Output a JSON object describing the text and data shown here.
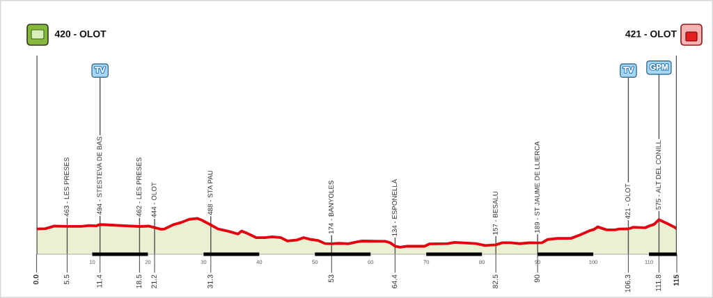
{
  "chart_data": {
    "type": "area",
    "x": [
      0,
      1.6,
      3.2,
      5.5,
      8,
      9.5,
      10.7,
      11.4,
      13.4,
      15.5,
      18.5,
      20.1,
      21.2,
      22.4,
      23,
      24.7,
      25.9,
      27.4,
      28.9,
      29.7,
      31.3,
      32.6,
      34.3,
      36.2,
      36.8,
      37.8,
      39.5,
      41,
      42.4,
      43.9,
      45.1,
      46.8,
      48,
      49.3,
      50.5,
      51.8,
      53,
      54.3,
      56,
      57.6,
      58.5,
      62.6,
      63.5,
      64.4,
      65.3,
      66.4,
      69.7,
      70.6,
      73.9,
      75.1,
      78.9,
      80.6,
      82.5,
      83.7,
      85.1,
      86.8,
      88.5,
      90,
      90.8,
      91.8,
      93.5,
      96,
      97.6,
      99.3,
      100.1,
      100.8,
      102.4,
      103.9,
      104.7,
      106.3,
      107.2,
      109.3,
      110.1,
      110.9,
      111.8,
      113.4,
      114.7,
      115
    ],
    "values": [
      420,
      425,
      468,
      463,
      463,
      478,
      472,
      494,
      485,
      474,
      462,
      468,
      444,
      415,
      420,
      495,
      525,
      580,
      595,
      565,
      488,
      420,
      385,
      337,
      385,
      350,
      275,
      275,
      290,
      275,
      220,
      237,
      275,
      245,
      230,
      178,
      174,
      181,
      174,
      207,
      219,
      215,
      192,
      134,
      117,
      132,
      132,
      172,
      177,
      198,
      177,
      145,
      157,
      192,
      192,
      176,
      190,
      189,
      192,
      245,
      262,
      264,
      320,
      390,
      410,
      455,
      405,
      405,
      420,
      421,
      448,
      440,
      472,
      495,
      575,
      505,
      445,
      421
    ],
    "value_labels": [
      null,
      null,
      null,
      "463 - LES PRESES",
      null,
      null,
      null,
      "494 - STESTEVA DE BAS",
      null,
      null,
      "462 - LES PRESES",
      null,
      "444 - OLOT",
      null,
      null,
      null,
      null,
      null,
      null,
      null,
      "488 - STA PAU",
      null,
      null,
      null,
      null,
      null,
      null,
      null,
      null,
      null,
      null,
      null,
      null,
      null,
      null,
      null,
      "174 - BANYOLES",
      null,
      null,
      null,
      null,
      null,
      null,
      "134 - ESPONELLÀ",
      null,
      null,
      null,
      null,
      null,
      null,
      null,
      null,
      "157 - BESALU",
      null,
      null,
      null,
      null,
      "189 - ST JAUME DE LLIERCA",
      null,
      null,
      null,
      null,
      null,
      null,
      null,
      null,
      null,
      null,
      null,
      "421 - OLOT",
      null,
      null,
      null,
      null,
      "575 - ALT DEL CONILL",
      null,
      null,
      null
    ],
    "color": "#e3000f",
    "xlim": [
      0,
      115
    ],
    "ylim": [
      0,
      3300
    ],
    "xticks": [
      {
        "value": 0,
        "label": "0.0"
      },
      5.5,
      11.4,
      18.5,
      21.2,
      31.3,
      53,
      64.4,
      82.5,
      90,
      106.3,
      111.8,
      115
    ],
    "x2lim": [
      0,
      115
    ],
    "x2ticks": [
      10,
      20,
      30,
      40,
      50,
      60,
      70,
      80,
      90,
      100,
      110
    ],
    "tick_labels": "x",
    "ref_lines": [
      {
        "axis": "x",
        "value": 0,
        "label": "420 - OLOT"
      },
      {
        "axis": "x",
        "value": 5.5
      },
      {
        "axis": "x",
        "value": 11.4
      },
      {
        "axis": "x",
        "value": 18.5
      },
      {
        "axis": "x",
        "value": 21.2
      },
      {
        "axis": "x",
        "value": 31.3
      },
      {
        "axis": "x",
        "value": 53
      },
      {
        "axis": "x",
        "value": 64.4
      },
      {
        "axis": "x",
        "value": 82.5
      },
      {
        "axis": "x",
        "value": 90
      },
      {
        "axis": "x",
        "value": 106.3
      },
      {
        "axis": "x",
        "value": 111.8
      },
      {
        "axis": "x",
        "value": 115,
        "label": "421 - OLOT"
      }
    ],
    "annotations": [
      {
        "text": "TV",
        "x": 11.4,
        "y": 3050
      },
      {
        "text": "TV",
        "x": 106.3,
        "y": 3050
      },
      {
        "text": "GPM",
        "x": 111.8,
        "y": 3100
      }
    ]
  }
}
